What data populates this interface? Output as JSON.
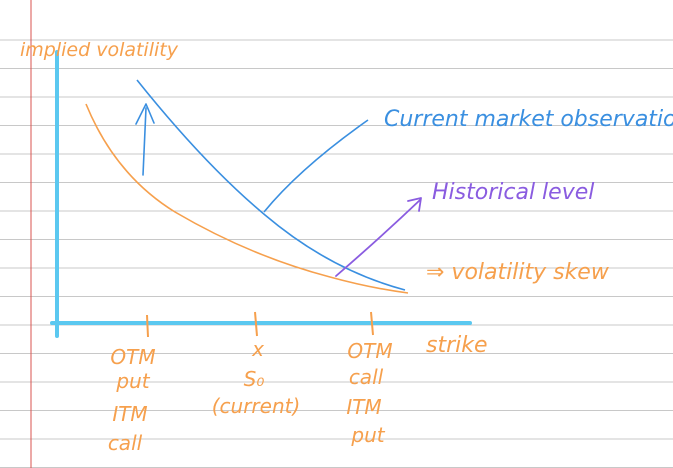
{
  "colors": {
    "paper": "#ffffff",
    "rule_line": "#c8c8c8",
    "margin_line": "#d9534f",
    "axis": "#5bc8f0",
    "orange": "#f6a04d",
    "blue": "#3a8fe0",
    "purple": "#8a5ce0"
  },
  "axis": {
    "y_label": "implied volatility",
    "x_label": "strike"
  },
  "ticks": [
    {
      "mark": "|",
      "lines": [
        "OTM",
        "put",
        "ITM",
        "call"
      ]
    },
    {
      "mark": "|",
      "lines": [
        "x",
        "S₀",
        "(current)"
      ]
    },
    {
      "mark": "|",
      "lines": [
        "OTM",
        "call",
        "ITM",
        "put"
      ]
    }
  ],
  "curves": {
    "orange_name": "Historical level",
    "blue_name": "Current market observation"
  },
  "annotations": {
    "current": "Current market observation",
    "historical": "Historical level",
    "skew": "⇒ volatility skew"
  }
}
